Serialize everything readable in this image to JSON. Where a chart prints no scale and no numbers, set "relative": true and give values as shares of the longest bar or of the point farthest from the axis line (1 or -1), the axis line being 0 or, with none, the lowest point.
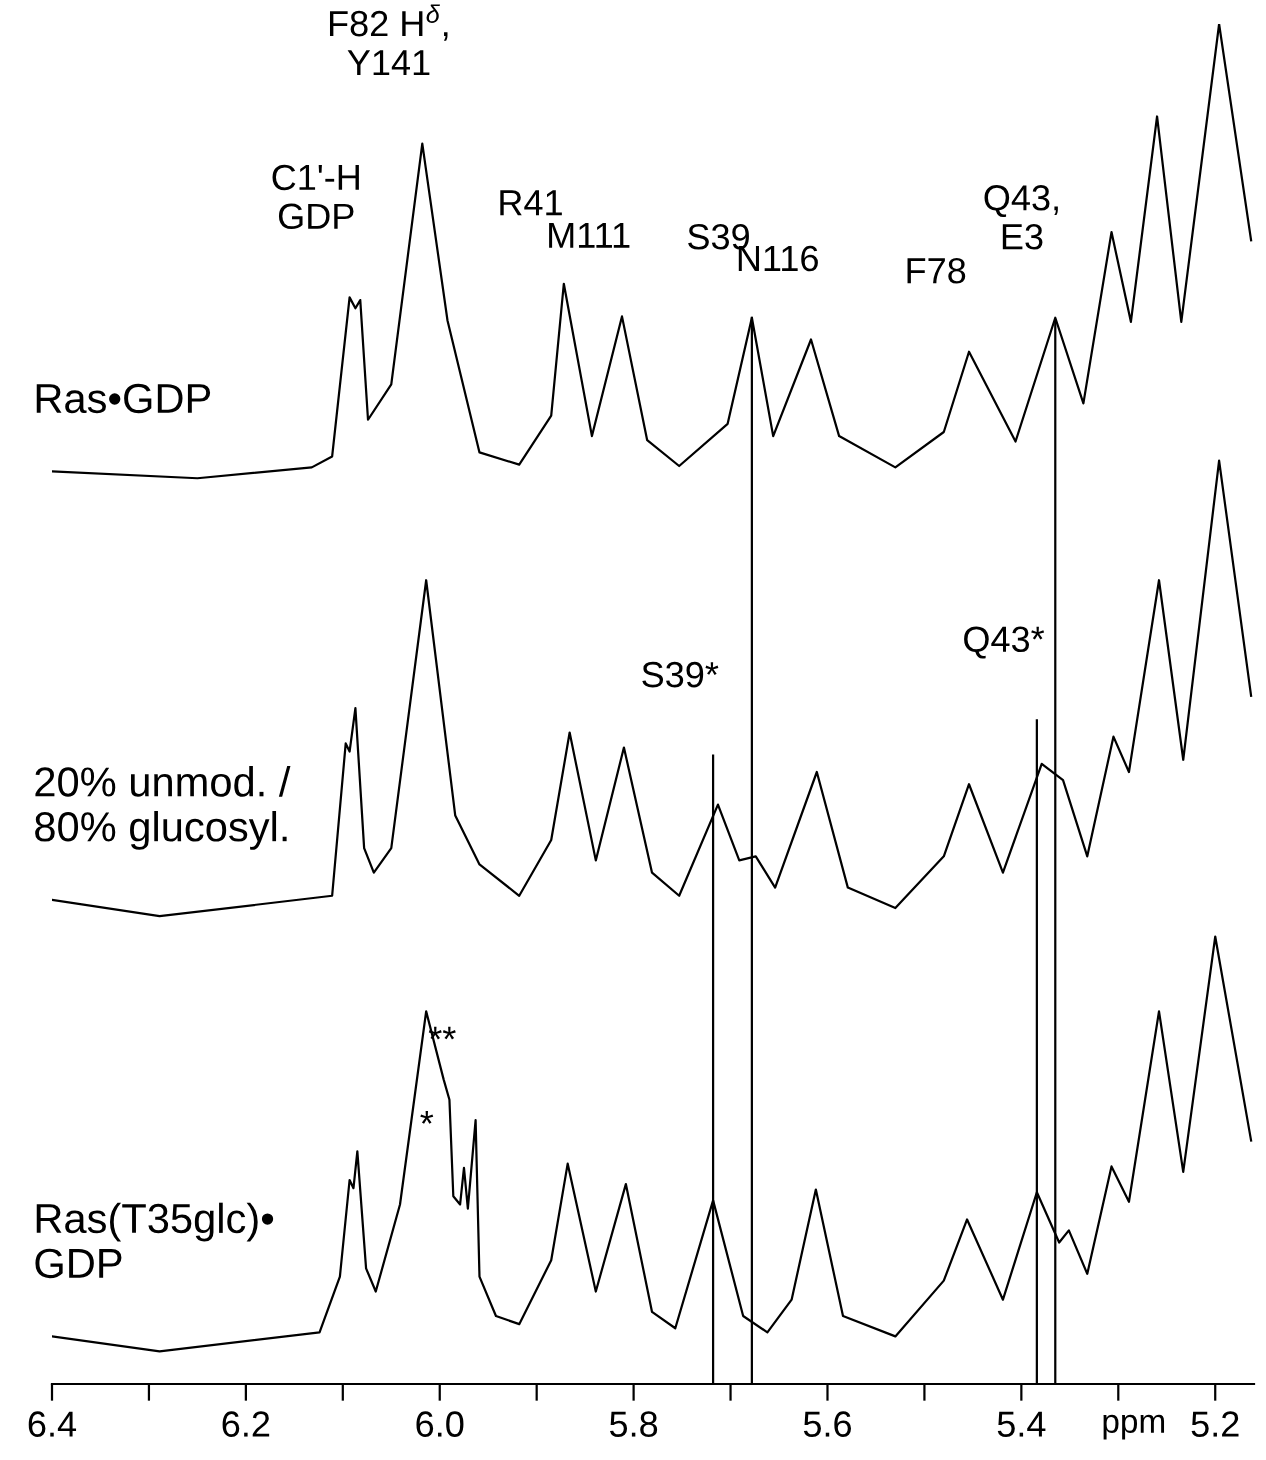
{
  "chart_data": {
    "type": "line",
    "relative": true,
    "xlim": [
      6.4,
      5.16
    ],
    "xlabel": "ppm",
    "xticks": [
      6.4,
      {
        "value": 6.3,
        "label": null
      },
      6.2,
      {
        "value": 6.1,
        "label": null
      },
      {
        "value": 6.0,
        "label": "6.0"
      },
      {
        "value": 5.9,
        "label": null
      },
      5.8,
      {
        "value": 5.7,
        "label": null
      },
      5.6,
      {
        "value": 5.5,
        "label": null
      },
      5.4,
      {
        "value": 5.3,
        "label": null
      },
      5.2
    ],
    "series": [
      {
        "name": "Ras•GDP",
        "color": "#000000",
        "x": [
          6.4,
          6.25,
          6.132,
          6.111,
          6.093,
          6.087,
          6.082,
          6.074,
          6.05,
          6.018,
          5.992,
          5.959,
          5.918,
          5.885,
          5.872,
          5.843,
          5.812,
          5.786,
          5.753,
          5.703,
          5.678,
          5.656,
          5.617,
          5.588,
          5.53,
          5.48,
          5.454,
          5.406,
          5.365,
          5.336,
          5.307,
          5.287,
          5.26,
          5.235,
          5.196,
          5.163
        ],
        "values": [
          0.671,
          0.666,
          0.674,
          0.682,
          0.799,
          0.791,
          0.797,
          0.709,
          0.735,
          0.912,
          0.782,
          0.685,
          0.676,
          0.712,
          0.809,
          0.697,
          0.785,
          0.694,
          0.675,
          0.706,
          0.784,
          0.697,
          0.768,
          0.697,
          0.674,
          0.7,
          0.759,
          0.693,
          0.784,
          0.721,
          0.847,
          0.781,
          0.932,
          0.781,
          1.0,
          0.841
        ]
      },
      {
        "name": "20% unmod. /\n80% glucosyl.",
        "color": "#000000",
        "x": [
          6.4,
          6.289,
          6.111,
          6.097,
          6.093,
          6.087,
          6.078,
          6.068,
          6.05,
          6.014,
          5.984,
          5.959,
          5.918,
          5.885,
          5.866,
          5.839,
          5.81,
          5.781,
          5.753,
          5.713,
          5.691,
          5.674,
          5.654,
          5.611,
          5.579,
          5.53,
          5.48,
          5.454,
          5.419,
          5.379,
          5.357,
          5.332,
          5.305,
          5.289,
          5.258,
          5.233,
          5.196,
          5.163
        ],
        "values": [
          0.356,
          0.344,
          0.359,
          0.471,
          0.465,
          0.497,
          0.394,
          0.376,
          0.394,
          0.591,
          0.418,
          0.382,
          0.359,
          0.4,
          0.479,
          0.385,
          0.468,
          0.376,
          0.359,
          0.426,
          0.385,
          0.388,
          0.365,
          0.45,
          0.365,
          0.35,
          0.388,
          0.441,
          0.376,
          0.456,
          0.444,
          0.388,
          0.476,
          0.45,
          0.591,
          0.459,
          0.679,
          0.506
        ]
      },
      {
        "name": "Ras(T35glc)•\nGDP",
        "color": "#000000",
        "x": [
          6.4,
          6.289,
          6.124,
          6.103,
          6.093,
          6.089,
          6.085,
          6.076,
          6.066,
          6.041,
          6.014,
          5.996,
          5.99,
          5.986,
          5.979,
          5.975,
          5.971,
          5.963,
          5.959,
          5.942,
          5.918,
          5.885,
          5.868,
          5.839,
          5.808,
          5.781,
          5.757,
          5.718,
          5.687,
          5.662,
          5.637,
          5.612,
          5.584,
          5.53,
          5.48,
          5.456,
          5.419,
          5.384,
          5.361,
          5.351,
          5.332,
          5.307,
          5.289,
          5.258,
          5.233,
          5.2,
          5.163
        ],
        "values": [
          0.035,
          0.024,
          0.038,
          0.079,
          0.15,
          0.144,
          0.171,
          0.085,
          0.068,
          0.132,
          0.274,
          0.224,
          0.209,
          0.138,
          0.132,
          0.159,
          0.129,
          0.194,
          0.079,
          0.05,
          0.044,
          0.091,
          0.162,
          0.068,
          0.147,
          0.053,
          0.041,
          0.135,
          0.05,
          0.038,
          0.062,
          0.143,
          0.05,
          0.035,
          0.076,
          0.121,
          0.062,
          0.141,
          0.104,
          0.113,
          0.081,
          0.16,
          0.134,
          0.274,
          0.156,
          0.329,
          0.179
        ]
      },
      {
        "color": "#000000",
        "x": [
          5.678,
          5.678
        ],
        "values": [
          0.0,
          0.784
        ]
      },
      {
        "color": "#000000",
        "x": [
          5.365,
          5.365
        ],
        "values": [
          0.0,
          0.782
        ]
      },
      {
        "color": "#000000",
        "x": [
          5.718,
          5.718
        ],
        "values": [
          0.0,
          0.462
        ]
      },
      {
        "color": "#000000",
        "x": [
          5.384,
          5.384
        ],
        "values": [
          0.0,
          0.488
        ]
      }
    ],
    "annotations": [
      {
        "text": "C1'-H\nGDP",
        "x": 6.093,
        "y": 0.799
      },
      {
        "text": "F82 H$^{δ}$,\nY141",
        "x": 6.018,
        "y": 0.912
      },
      {
        "text": "R41",
        "x": 5.872,
        "y": 0.809
      },
      {
        "text": "M111",
        "x": 5.812,
        "y": 0.785
      },
      {
        "text": "S39",
        "x": 5.678,
        "y": 0.784
      },
      {
        "text": "N116",
        "x": 5.617,
        "y": 0.768
      },
      {
        "text": "F78",
        "x": 5.454,
        "y": 0.759
      },
      {
        "text": "Q43,\nE3",
        "x": 5.365,
        "y": 0.784
      },
      {
        "text": "S39*",
        "x": 5.718,
        "y": 0.462
      },
      {
        "text": "Q43*",
        "x": 5.384,
        "y": 0.488
      },
      {
        "text": "**",
        "x": 5.963,
        "y": 0.194
      },
      {
        "text": "*",
        "x": 5.979,
        "y": 0.132
      }
    ]
  }
}
